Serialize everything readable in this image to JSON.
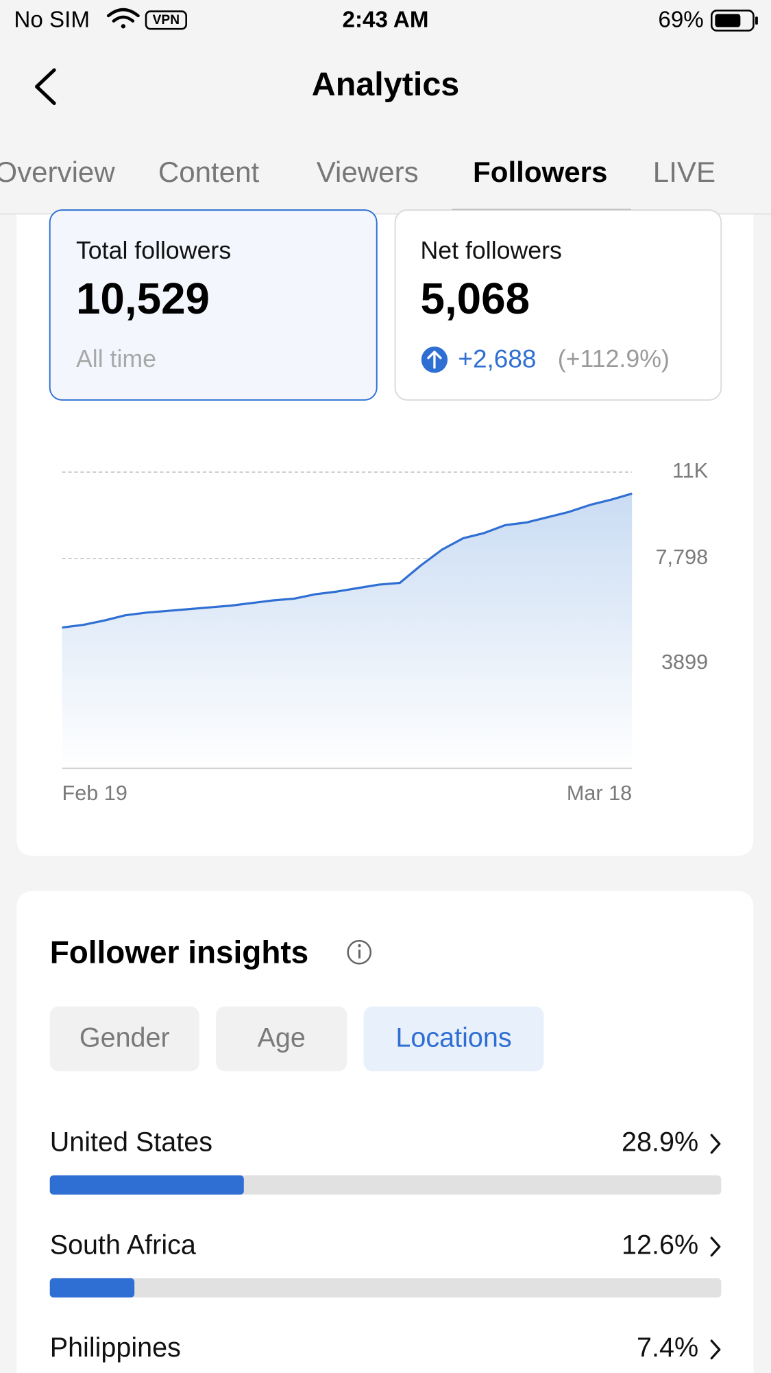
{
  "status": {
    "carrier": "No SIM",
    "vpn": "VPN",
    "time": "2:43 AM",
    "battery": "69%"
  },
  "header": {
    "title": "Analytics"
  },
  "tabs": [
    "Overview",
    "Content",
    "Viewers",
    "Followers",
    "LIVE"
  ],
  "cards": {
    "total": {
      "label": "Total followers",
      "value": "10,529",
      "note": "All time"
    },
    "net": {
      "label": "Net followers",
      "value": "5,068",
      "change": "+2,688",
      "change_pct": "(+112.9%)"
    }
  },
  "insights": {
    "title": "Follower insights",
    "filters": [
      "Gender",
      "Age",
      "Locations"
    ]
  },
  "chart_data": [
    {
      "type": "line",
      "categories": [
        "Feb 19",
        null,
        null,
        null,
        null,
        null,
        null,
        null,
        null,
        null,
        null,
        null,
        null,
        null,
        null,
        null,
        null,
        null,
        null,
        null,
        null,
        null,
        null,
        null,
        null,
        null,
        null,
        "Mar 18"
      ],
      "values": [
        5231,
        5328,
        5491,
        5686,
        5783,
        5848,
        5913,
        5978,
        6043,
        6141,
        6238,
        6303,
        6466,
        6563,
        6693,
        6823,
        6888,
        7538,
        8123,
        8545,
        8740,
        9032,
        9130,
        9325,
        9520,
        9780,
        9975,
        10202
      ],
      "color": "#2f6fd3",
      "ylim": [
        0,
        11697
      ],
      "yticks": [
        3899,
        {
          "value": 7798,
          "label": "7,798"
        },
        {
          "value": 11000,
          "label": "11K"
        }
      ],
      "grid": true
    },
    {
      "type": "hbar",
      "categories": [
        "United States",
        "South Africa",
        "Philippines"
      ],
      "values": [
        28.9,
        12.6,
        7.4
      ],
      "value_labels": [
        "28.9%",
        "12.6%",
        "7.4%"
      ],
      "color": "#2f6fd3",
      "xlim": [
        0,
        100
      ]
    }
  ]
}
